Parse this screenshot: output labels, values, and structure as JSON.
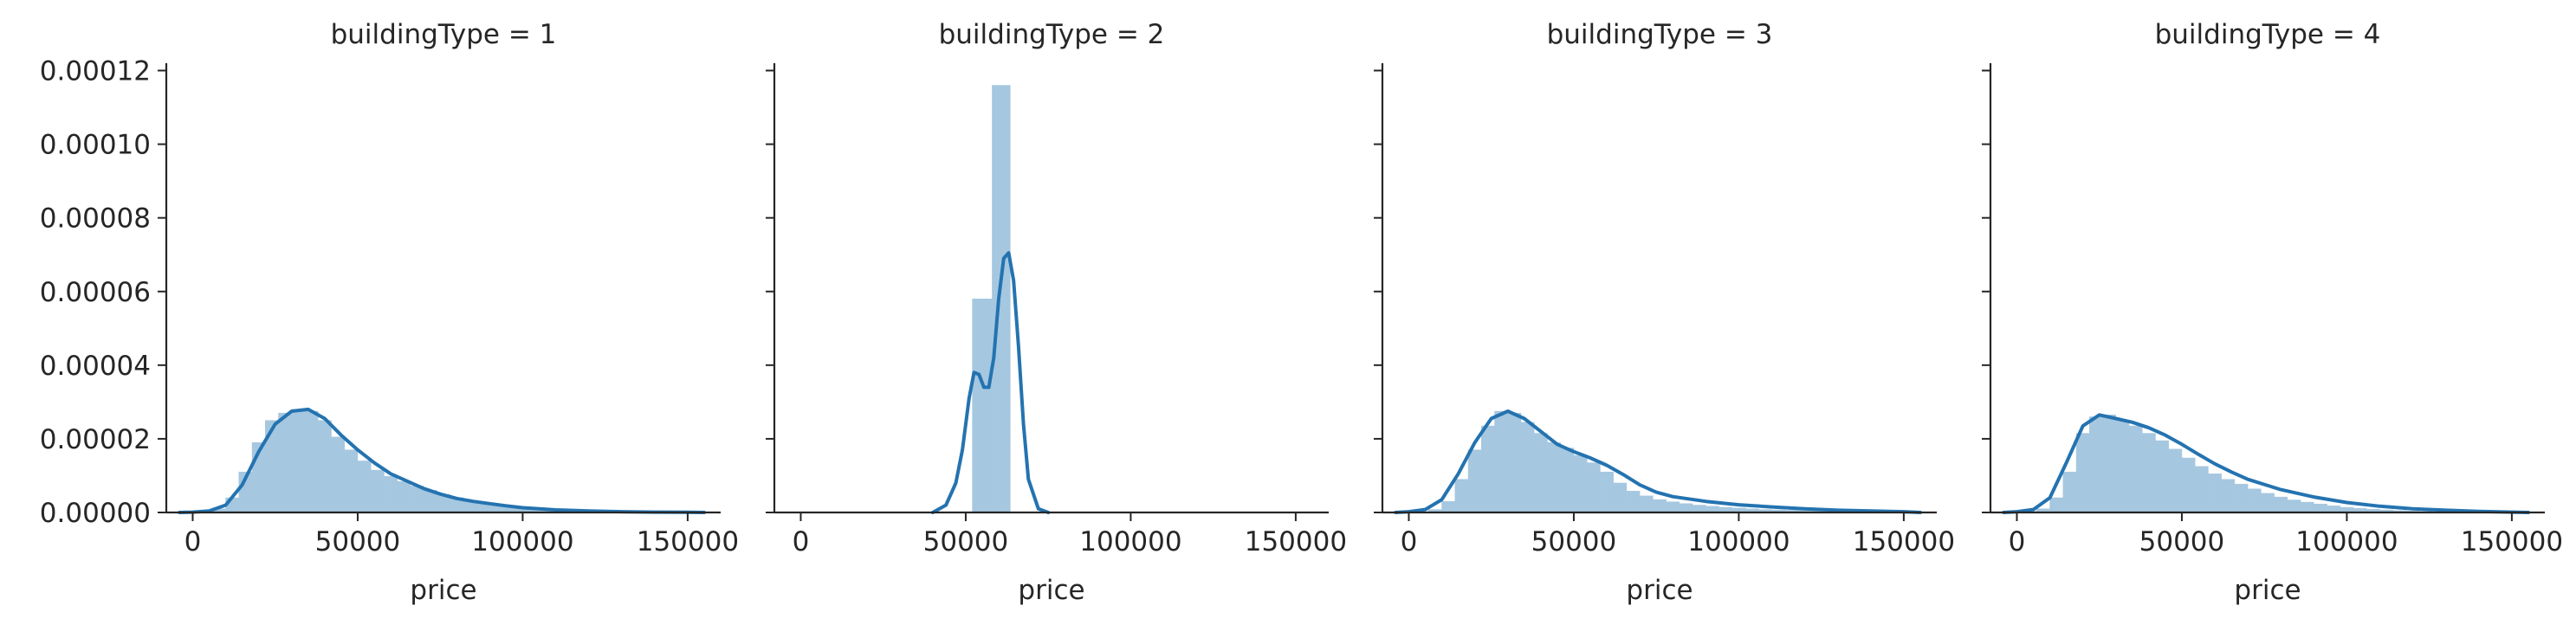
{
  "colors": {
    "bar_fill": "#a6c7e0",
    "kde_line": "#2473b0",
    "axis": "#262626",
    "text": "#262626",
    "background": "#ffffff"
  },
  "chart_data": [
    {
      "type": "bar",
      "title": "buildingType = 1",
      "xlabel": "price",
      "ylabel": "",
      "xlim": [
        -8000,
        160000
      ],
      "ylim": [
        0,
        0.000122
      ],
      "xticks": [
        "0",
        "50000",
        "100000",
        "150000"
      ],
      "xtick_values": [
        0,
        50000,
        100000,
        150000
      ],
      "yticks": [
        "0.00000",
        "0.00002",
        "0.00004",
        "0.00006",
        "0.00008",
        "0.00010",
        "0.00012"
      ],
      "ytick_values": [
        0,
        2e-05,
        4e-05,
        6e-05,
        8e-05,
        0.0001,
        0.00012
      ],
      "histogram": {
        "bin_edges": [
          -2000,
          2000,
          6000,
          10000,
          14000,
          18000,
          22000,
          26000,
          30000,
          34000,
          38000,
          42000,
          46000,
          50000,
          54000,
          58000,
          62000,
          66000,
          70000,
          74000,
          78000,
          82000,
          86000,
          90000,
          94000,
          98000,
          102000,
          106000,
          110000,
          114000,
          118000,
          122000,
          126000,
          130000,
          134000,
          138000,
          142000,
          146000,
          150000,
          154000
        ],
        "values": [
          0,
          2e-07,
          1e-06,
          4e-06,
          1.1e-05,
          1.9e-05,
          2.5e-05,
          2.7e-05,
          2.8e-05,
          2.75e-05,
          2.5e-05,
          2.05e-05,
          1.7e-05,
          1.4e-05,
          1.15e-05,
          9.8e-06,
          8.4e-06,
          7.2e-06,
          6e-06,
          4.9e-06,
          4e-06,
          3.2e-06,
          2.5e-06,
          1.9e-06,
          1.5e-06,
          1.1e-06,
          8e-07,
          6e-07,
          5e-07,
          4e-07,
          3e-07,
          2e-07,
          2e-07,
          1e-07,
          1e-07,
          1e-07,
          1e-07,
          5e-08,
          5e-08
        ]
      },
      "kde": {
        "x": [
          -4000,
          0,
          5000,
          10000,
          15000,
          20000,
          25000,
          30000,
          35000,
          40000,
          45000,
          50000,
          55000,
          60000,
          65000,
          70000,
          75000,
          80000,
          85000,
          90000,
          95000,
          100000,
          110000,
          120000,
          130000,
          140000,
          150000,
          155000
        ],
        "y": [
          0,
          1e-07,
          4e-07,
          2e-06,
          7.5e-06,
          1.65e-05,
          2.4e-05,
          2.75e-05,
          2.8e-05,
          2.55e-05,
          2.1e-05,
          1.7e-05,
          1.35e-05,
          1.05e-05,
          8.5e-06,
          6.5e-06,
          5e-06,
          3.8e-06,
          3e-06,
          2.4e-06,
          1.8e-06,
          1.3e-06,
          7e-07,
          4e-07,
          2e-07,
          1e-07,
          5e-08,
          0
        ]
      }
    },
    {
      "type": "bar",
      "title": "buildingType = 2",
      "xlabel": "price",
      "ylabel": "",
      "xlim": [
        -8000,
        160000
      ],
      "ylim": [
        0,
        0.000122
      ],
      "xticks": [
        "0",
        "50000",
        "100000",
        "150000"
      ],
      "xtick_values": [
        0,
        50000,
        100000,
        150000
      ],
      "histogram": {
        "bin_edges": [
          52000,
          58000,
          63500
        ],
        "values": [
          5.8e-05,
          0.000116
        ]
      },
      "kde": {
        "x": [
          40000,
          44000,
          47000,
          49000,
          51000,
          52500,
          54000,
          55500,
          57000,
          58500,
          60000,
          61500,
          63000,
          64500,
          66000,
          67500,
          69000,
          72000,
          75000
        ],
        "y": [
          0,
          2e-06,
          8e-06,
          1.7e-05,
          3.1e-05,
          3.8e-05,
          3.75e-05,
          3.4e-05,
          3.4e-05,
          4.2e-05,
          5.8e-05,
          6.9e-05,
          7.05e-05,
          6.3e-05,
          4.5e-05,
          2.4e-05,
          9e-06,
          1e-06,
          0
        ]
      }
    },
    {
      "type": "bar",
      "title": "buildingType = 3",
      "xlabel": "price",
      "ylabel": "",
      "xlim": [
        -8000,
        160000
      ],
      "ylim": [
        0,
        0.000122
      ],
      "xticks": [
        "0",
        "50000",
        "100000",
        "150000"
      ],
      "xtick_values": [
        0,
        50000,
        100000,
        150000
      ],
      "histogram": {
        "bin_edges": [
          -2000,
          2000,
          6000,
          10000,
          14000,
          18000,
          22000,
          26000,
          30000,
          34000,
          38000,
          42000,
          46000,
          50000,
          54000,
          58000,
          62000,
          66000,
          70000,
          74000,
          78000,
          82000,
          86000,
          90000,
          94000,
          98000,
          102000,
          106000,
          110000,
          114000,
          118000,
          122000,
          126000,
          130000,
          134000,
          138000,
          142000,
          146000,
          150000,
          154000
        ],
        "values": [
          0,
          2e-07,
          8e-07,
          3e-06,
          9e-06,
          1.7e-05,
          2.35e-05,
          2.75e-05,
          2.7e-05,
          2.45e-05,
          2.15e-05,
          1.9e-05,
          1.75e-05,
          1.55e-05,
          1.35e-05,
          1.1e-05,
          8e-06,
          5.8e-06,
          4.5e-06,
          3.5e-06,
          2.9e-06,
          2.4e-06,
          2e-06,
          1.7e-06,
          1.4e-06,
          1.2e-06,
          1e-06,
          8e-07,
          7e-07,
          6e-07,
          5e-07,
          4e-07,
          3e-07,
          3e-07,
          2e-07,
          2e-07,
          1e-07,
          1e-07,
          1e-07
        ]
      },
      "kde": {
        "x": [
          -4000,
          0,
          5000,
          10000,
          15000,
          20000,
          25000,
          30000,
          35000,
          40000,
          45000,
          50000,
          55000,
          60000,
          65000,
          70000,
          75000,
          80000,
          90000,
          100000,
          110000,
          120000,
          130000,
          140000,
          150000,
          155000
        ],
        "y": [
          0,
          2e-07,
          8e-07,
          3.5e-06,
          1.05e-05,
          1.9e-05,
          2.55e-05,
          2.75e-05,
          2.55e-05,
          2.2e-05,
          1.85e-05,
          1.65e-05,
          1.48e-05,
          1.28e-05,
          1.03e-05,
          7.5e-06,
          5.5e-06,
          4.3e-06,
          3e-06,
          2.1e-06,
          1.5e-06,
          1e-06,
          6e-07,
          4e-07,
          2e-07,
          0
        ]
      }
    },
    {
      "type": "bar",
      "title": "buildingType = 4",
      "xlabel": "price",
      "ylabel": "",
      "xlim": [
        -8000,
        160000
      ],
      "ylim": [
        0,
        0.000122
      ],
      "xticks": [
        "0",
        "50000",
        "100000",
        "150000"
      ],
      "xtick_values": [
        0,
        50000,
        100000,
        150000
      ],
      "histogram": {
        "bin_edges": [
          -2000,
          2000,
          6000,
          10000,
          14000,
          18000,
          22000,
          26000,
          30000,
          34000,
          38000,
          42000,
          46000,
          50000,
          54000,
          58000,
          62000,
          66000,
          70000,
          74000,
          78000,
          82000,
          86000,
          90000,
          94000,
          98000,
          102000,
          106000,
          110000,
          114000,
          118000,
          122000,
          126000,
          130000,
          134000,
          138000,
          142000,
          146000,
          150000,
          154000
        ],
        "values": [
          0,
          3e-07,
          1e-06,
          4e-06,
          1.1e-05,
          2.15e-05,
          2.6e-05,
          2.65e-05,
          2.5e-05,
          2.35e-05,
          2.15e-05,
          1.95e-05,
          1.72e-05,
          1.48e-05,
          1.25e-05,
          1.05e-05,
          9e-06,
          7.7e-06,
          6.4e-06,
          5.2e-06,
          4.2e-06,
          3.4e-06,
          2.8e-06,
          2.3e-06,
          1.8e-06,
          1.4e-06,
          1.1e-06,
          9e-07,
          7e-07,
          5e-07,
          4e-07,
          3e-07,
          2e-07,
          2e-07,
          1e-07,
          1e-07,
          1e-07,
          5e-08,
          5e-08
        ]
      },
      "kde": {
        "x": [
          -4000,
          0,
          5000,
          10000,
          15000,
          20000,
          25000,
          30000,
          35000,
          40000,
          45000,
          50000,
          55000,
          60000,
          65000,
          70000,
          80000,
          90000,
          100000,
          110000,
          120000,
          130000,
          140000,
          150000,
          155000
        ],
        "y": [
          0,
          2e-07,
          8e-07,
          4e-06,
          1.35e-05,
          2.35e-05,
          2.65e-05,
          2.55e-05,
          2.45e-05,
          2.3e-05,
          2.1e-05,
          1.85e-05,
          1.58e-05,
          1.32e-05,
          1.1e-05,
          9e-06,
          6.2e-06,
          4.2e-06,
          2.7e-06,
          1.7e-06,
          1e-06,
          6e-07,
          3e-07,
          1e-07,
          0
        ]
      }
    }
  ]
}
